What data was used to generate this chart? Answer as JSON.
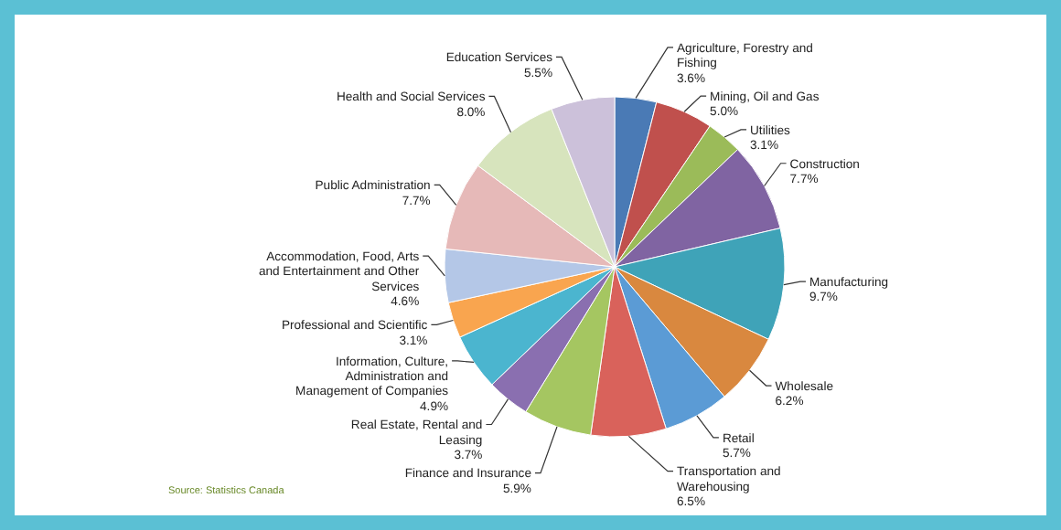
{
  "chart_data": {
    "type": "pie",
    "categories": [
      "Agriculture, Forestry and Fishing",
      "Mining, Oil and Gas",
      "Utilities",
      "Construction",
      "Manufacturing",
      "Wholesale",
      "Retail",
      "Transportation and Warehousing",
      "Finance and Insurance",
      "Real Estate, Rental and Leasing",
      "Information, Culture, Administration and Management of Companies",
      "Professional and Scientific",
      "Accommodation, Food, Arts and Entertainment and Other Services",
      "Public Administration",
      "Health and Social Services",
      "Education Services"
    ],
    "values": [
      3.6,
      5.0,
      3.1,
      7.7,
      9.7,
      6.2,
      5.7,
      6.5,
      5.9,
      3.7,
      4.9,
      3.1,
      4.6,
      7.7,
      8.0,
      5.5
    ],
    "value_labels": [
      "3.6%",
      "5.0%",
      "3.1%",
      "7.7%",
      "9.7%",
      "6.2%",
      "5.7%",
      "6.5%",
      "5.9%",
      "3.7%",
      "4.9%",
      "3.1%",
      "4.6%",
      "7.7%",
      "8.0%",
      "5.5%"
    ],
    "colors": [
      "#4a7ab5",
      "#c0504d",
      "#9bbb59",
      "#8064a2",
      "#3fa3b8",
      "#d9883f",
      "#5b9bd5",
      "#d9625b",
      "#a5c661",
      "#8a6fb0",
      "#4bb5cf",
      "#f9a54f",
      "#b4c7e7",
      "#e6b9b8",
      "#d7e4bd",
      "#ccc1da"
    ],
    "annotations": [
      "Source: Statistics Canada"
    ]
  }
}
